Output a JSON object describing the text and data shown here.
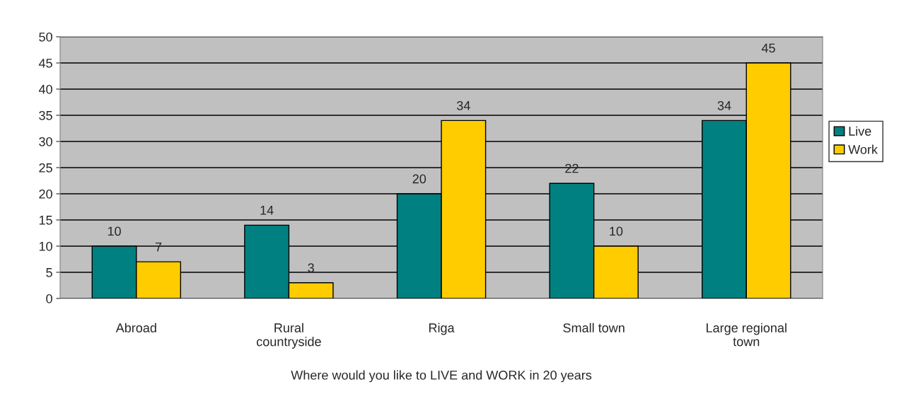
{
  "chart_data": {
    "type": "bar",
    "xlabel": "Where would you like to LIVE and WORK in 20 years",
    "categories": [
      "Abroad",
      "Rural\ncountryside",
      "Riga",
      "Small town",
      "Large regional\ntown"
    ],
    "series": [
      {
        "name": "Live",
        "color": "#008080",
        "values": [
          10,
          14,
          20,
          22,
          34
        ]
      },
      {
        "name": "Work",
        "color": "#ffcc00",
        "values": [
          7,
          3,
          34,
          10,
          45
        ]
      }
    ],
    "ylim": [
      0,
      50
    ],
    "yticks": [
      0,
      5,
      10,
      15,
      20,
      25,
      30,
      35,
      40,
      45,
      50
    ],
    "grid": "y",
    "legend": "right",
    "data_labels": true
  }
}
